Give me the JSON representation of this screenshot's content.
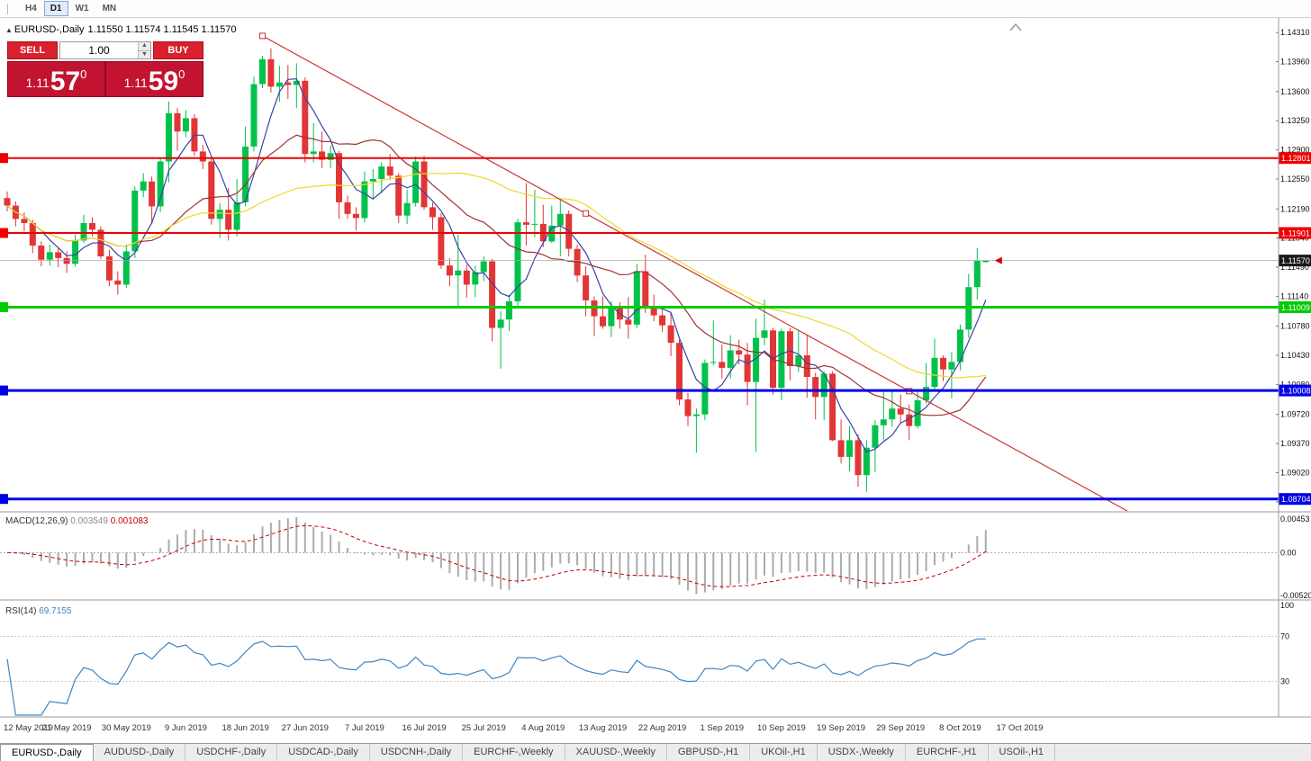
{
  "toolbar": {
    "timeframes": [
      {
        "label": "H4",
        "active": false
      },
      {
        "label": "D1",
        "active": true
      },
      {
        "label": "W1",
        "active": false
      },
      {
        "label": "MN",
        "active": false
      }
    ]
  },
  "chart_header": {
    "collapse_icon": "▲",
    "title": "EURUSD-,Daily",
    "ohlc": "1.11550 1.11574 1.11545 1.11570"
  },
  "trade_panel": {
    "sell_label": "SELL",
    "buy_label": "BUY",
    "volume": "1.00",
    "volume_up_icon": "▲",
    "volume_down_icon": "▼",
    "sell_price_main": "1.11",
    "sell_price_pips": "57",
    "sell_price_point": "0",
    "buy_price_main": "1.11",
    "buy_price_pips": "59",
    "buy_price_point": "0"
  },
  "chart_data": {
    "type": "candlestick",
    "symbol": "EURUSD-,Daily",
    "price_axis": {
      "max": 1.1442,
      "min": 1.0856,
      "ticks": [
        "1.14310",
        "1.13960",
        "1.13600",
        "1.13250",
        "1.12900",
        "1.12550",
        "1.12190",
        "1.11840",
        "1.11490",
        "1.11140",
        "1.10780",
        "1.10430",
        "1.10080",
        "1.09720",
        "1.09370",
        "1.09020",
        "1.08670"
      ]
    },
    "x_axis": {
      "labels": [
        "12 May 2019",
        "21 May 2019",
        "30 May 2019",
        "9 Jun 2019",
        "18 Jun 2019",
        "27 Jun 2019",
        "7 Jul 2019",
        "16 Jul 2019",
        "25 Jul 2019",
        "4 Aug 2019",
        "13 Aug 2019",
        "22 Aug 2019",
        "1 Sep 2019",
        "10 Sep 2019",
        "19 Sep 2019",
        "29 Sep 2019",
        "8 Oct 2019",
        "17 Oct 2019"
      ],
      "bars_per_label": 7
    },
    "colors": {
      "bull": "#00C24B",
      "bear": "#E23535",
      "ma_fast": "#3642A8",
      "ma_mid": "#9E3330",
      "ma_slow": "#EDD92B",
      "trend": "#CC3333",
      "macd_hist": "#ABABAB",
      "macd_signal": "#C40000",
      "rsi": "#3E86C4"
    },
    "overlays": [
      {
        "name": "ma-fast",
        "period": 5,
        "color": "#3642A8"
      },
      {
        "name": "ma-mid",
        "period": 16,
        "color": "#9E3330"
      },
      {
        "name": "ma-slow",
        "period": 40,
        "color": "#EDD92B"
      }
    ],
    "candles": [
      [
        1.1232,
        1.124,
        1.1216,
        1.1223
      ],
      [
        1.1223,
        1.1228,
        1.1198,
        1.1207
      ],
      [
        1.1207,
        1.1215,
        1.1192,
        1.1202
      ],
      [
        1.1202,
        1.1206,
        1.1166,
        1.1175
      ],
      [
        1.1175,
        1.118,
        1.115,
        1.1158
      ],
      [
        1.1158,
        1.1176,
        1.1151,
        1.1167
      ],
      [
        1.1167,
        1.1173,
        1.1149,
        1.116
      ],
      [
        1.116,
        1.1168,
        1.1142,
        1.1153
      ],
      [
        1.1153,
        1.1188,
        1.115,
        1.1181
      ],
      [
        1.1181,
        1.1212,
        1.1178,
        1.1202
      ],
      [
        1.1202,
        1.1209,
        1.1186,
        1.1194
      ],
      [
        1.1194,
        1.1198,
        1.1159,
        1.1162
      ],
      [
        1.1162,
        1.117,
        1.1126,
        1.1133
      ],
      [
        1.1133,
        1.1144,
        1.1116,
        1.1128
      ],
      [
        1.1128,
        1.1176,
        1.1124,
        1.1168
      ],
      [
        1.1168,
        1.1246,
        1.116,
        1.1241
      ],
      [
        1.1241,
        1.1262,
        1.1233,
        1.1252
      ],
      [
        1.1252,
        1.1258,
        1.1201,
        1.1222
      ],
      [
        1.1222,
        1.128,
        1.1215,
        1.1276
      ],
      [
        1.1276,
        1.1348,
        1.1251,
        1.1334
      ],
      [
        1.1334,
        1.134,
        1.1289,
        1.1312
      ],
      [
        1.1312,
        1.1338,
        1.1305,
        1.1328
      ],
      [
        1.1328,
        1.1333,
        1.1283,
        1.1288
      ],
      [
        1.1288,
        1.1296,
        1.1267,
        1.1276
      ],
      [
        1.1276,
        1.128,
        1.12,
        1.1207
      ],
      [
        1.1207,
        1.1226,
        1.1184,
        1.1218
      ],
      [
        1.1218,
        1.1244,
        1.1181,
        1.1194
      ],
      [
        1.1194,
        1.1255,
        1.1186,
        1.1227
      ],
      [
        1.1227,
        1.1318,
        1.1222,
        1.1294
      ],
      [
        1.1294,
        1.1378,
        1.1288,
        1.1369
      ],
      [
        1.1369,
        1.1403,
        1.1364,
        1.1399
      ],
      [
        1.1399,
        1.1412,
        1.1359,
        1.1366
      ],
      [
        1.1366,
        1.1391,
        1.1348,
        1.1371
      ],
      [
        1.1371,
        1.1392,
        1.1351,
        1.1368
      ],
      [
        1.1368,
        1.1394,
        1.134,
        1.1373
      ],
      [
        1.1373,
        1.1377,
        1.1275,
        1.1285
      ],
      [
        1.1285,
        1.1322,
        1.1275,
        1.1288
      ],
      [
        1.1288,
        1.1312,
        1.1268,
        1.1278
      ],
      [
        1.1278,
        1.1295,
        1.1268,
        1.1286
      ],
      [
        1.1286,
        1.1289,
        1.1207,
        1.1227
      ],
      [
        1.1227,
        1.1235,
        1.1207,
        1.1213
      ],
      [
        1.1213,
        1.1221,
        1.1193,
        1.1208
      ],
      [
        1.1208,
        1.1264,
        1.1203,
        1.1252
      ],
      [
        1.1252,
        1.1267,
        1.1232,
        1.1255
      ],
      [
        1.1255,
        1.1275,
        1.1238,
        1.127
      ],
      [
        1.127,
        1.1285,
        1.1254,
        1.1259
      ],
      [
        1.1259,
        1.1262,
        1.1202,
        1.1211
      ],
      [
        1.1211,
        1.1242,
        1.1201,
        1.1226
      ],
      [
        1.1226,
        1.1282,
        1.1222,
        1.1276
      ],
      [
        1.1276,
        1.1283,
        1.1218,
        1.1221
      ],
      [
        1.1221,
        1.1227,
        1.1194,
        1.1209
      ],
      [
        1.1209,
        1.1214,
        1.1147,
        1.1151
      ],
      [
        1.1151,
        1.116,
        1.1126,
        1.1139
      ],
      [
        1.1139,
        1.1188,
        1.1101,
        1.1145
      ],
      [
        1.1145,
        1.1152,
        1.1112,
        1.1128
      ],
      [
        1.1128,
        1.1151,
        1.1113,
        1.1143
      ],
      [
        1.1143,
        1.1162,
        1.1132,
        1.1156
      ],
      [
        1.1156,
        1.1159,
        1.106,
        1.1076
      ],
      [
        1.1076,
        1.1096,
        1.1027,
        1.1086
      ],
      [
        1.1086,
        1.1116,
        1.1072,
        1.1108
      ],
      [
        1.1108,
        1.1207,
        1.1101,
        1.1203
      ],
      [
        1.1203,
        1.125,
        1.1175,
        1.12
      ],
      [
        1.12,
        1.1242,
        1.1185,
        1.1201
      ],
      [
        1.1201,
        1.1224,
        1.1173,
        1.118
      ],
      [
        1.118,
        1.1223,
        1.1178,
        1.1199
      ],
      [
        1.1199,
        1.123,
        1.1162,
        1.1213
      ],
      [
        1.1213,
        1.1217,
        1.1162,
        1.1171
      ],
      [
        1.1171,
        1.1176,
        1.1131,
        1.1139
      ],
      [
        1.1139,
        1.115,
        1.109,
        1.1109
      ],
      [
        1.1109,
        1.1114,
        1.1066,
        1.109
      ],
      [
        1.109,
        1.1114,
        1.1075,
        1.1078
      ],
      [
        1.1078,
        1.1108,
        1.1065,
        1.11
      ],
      [
        1.11,
        1.1107,
        1.1075,
        1.1086
      ],
      [
        1.1086,
        1.1113,
        1.1063,
        1.108
      ],
      [
        1.108,
        1.1153,
        1.1076,
        1.1144
      ],
      [
        1.1144,
        1.1164,
        1.1094,
        1.1101
      ],
      [
        1.1101,
        1.1116,
        1.1084,
        1.1091
      ],
      [
        1.1091,
        1.1098,
        1.1071,
        1.1079
      ],
      [
        1.1079,
        1.1094,
        1.1042,
        1.1058
      ],
      [
        1.1058,
        1.1062,
        1.0983,
        1.099
      ],
      [
        1.099,
        1.0998,
        1.0958,
        1.097
      ],
      [
        1.097,
        1.0979,
        1.0926,
        1.0972
      ],
      [
        1.0972,
        1.1038,
        1.0965,
        1.1034
      ],
      [
        1.1034,
        1.1085,
        1.1031,
        1.1035
      ],
      [
        1.1035,
        1.1056,
        1.1015,
        1.1028
      ],
      [
        1.1028,
        1.1067,
        1.1015,
        1.1049
      ],
      [
        1.1049,
        1.1062,
        1.1032,
        1.1044
      ],
      [
        1.1044,
        1.1058,
        1.0983,
        1.1011
      ],
      [
        1.1011,
        1.1087,
        1.0927,
        1.1064
      ],
      [
        1.1064,
        1.111,
        1.1055,
        1.1073
      ],
      [
        1.1073,
        1.1076,
        1.0996,
        1.1004
      ],
      [
        1.1004,
        1.1075,
        1.0989,
        1.1072
      ],
      [
        1.1072,
        1.1076,
        1.1013,
        1.103
      ],
      [
        1.103,
        1.1074,
        1.1023,
        1.1043
      ],
      [
        1.1043,
        1.1068,
        1.0992,
        1.1017
      ],
      [
        1.1017,
        1.1022,
        1.0966,
        1.0993
      ],
      [
        1.0993,
        1.1024,
        1.0965,
        1.1021
      ],
      [
        1.1021,
        1.1024,
        1.094,
        1.0941
      ],
      [
        1.0941,
        1.0966,
        1.0913,
        1.0921
      ],
      [
        1.0921,
        1.0958,
        1.0904,
        1.0941
      ],
      [
        1.0941,
        1.0948,
        1.0885,
        1.0899
      ],
      [
        1.0899,
        1.0941,
        1.0879,
        1.0932
      ],
      [
        1.0932,
        1.0965,
        1.0903,
        1.0959
      ],
      [
        1.0959,
        1.0999,
        1.0941,
        1.0966
      ],
      [
        1.0966,
        1.1,
        1.0957,
        1.0979
      ],
      [
        1.0979,
        1.0996,
        1.0962,
        1.0972
      ],
      [
        1.0972,
        1.0984,
        1.0941,
        1.0958
      ],
      [
        1.0958,
        1.0999,
        1.0955,
        1.0989
      ],
      [
        1.0989,
        1.1034,
        1.0985,
        1.1005
      ],
      [
        1.1005,
        1.1063,
        1.1002,
        1.104
      ],
      [
        1.104,
        1.1043,
        1.1012,
        1.1026
      ],
      [
        1.1026,
        1.1047,
        1.0991,
        1.1035
      ],
      [
        1.1035,
        1.108,
        1.1025,
        1.1074
      ],
      [
        1.1074,
        1.1141,
        1.1064,
        1.1125
      ],
      [
        1.1125,
        1.1172,
        1.111,
        1.1157
      ],
      [
        1.1155,
        1.11574,
        1.11545,
        1.1157
      ]
    ],
    "hlines": [
      {
        "price": 1.12801,
        "label": "1.12801",
        "color": "#EE0000",
        "width": 2
      },
      {
        "price": 1.11901,
        "label": "1.11901",
        "color": "#EE0000",
        "width": 2
      },
      {
        "price": 1.11009,
        "label": "1.11009",
        "color": "#00CC00",
        "width": 3
      },
      {
        "price": 1.10008,
        "label": "1.10008",
        "color": "#0000E6",
        "width": 3
      },
      {
        "price": 1.08704,
        "label": "1.08704",
        "color": "#0000E6",
        "width": 3
      }
    ],
    "current_price": {
      "value": 1.1157,
      "label": "1.11570"
    },
    "trendline": {
      "from_bar": 30,
      "from_price": 1.1427,
      "to_bar": 106,
      "to_price": 1.1,
      "ray": true
    },
    "macd": {
      "label": "MACD(12,26,9)",
      "value_main": "0.003549",
      "value_signal": "0.001083",
      "fast": 12,
      "slow": 26,
      "signal": 9,
      "axis_top": "0.00453",
      "axis_zero": "0.00",
      "axis_bottom": "-0.00520"
    },
    "rsi": {
      "label": "RSI(14)",
      "value": "69.7155",
      "period": 14,
      "levels": [
        70,
        30
      ],
      "axis_labels": {
        "top": "100",
        "upper": "70",
        "lower": "30"
      }
    }
  },
  "tabs": {
    "items": [
      {
        "label": "EURUSD-,Daily",
        "active": true
      },
      {
        "label": "AUDUSD-,Daily",
        "active": false
      },
      {
        "label": "USDCHF-,Daily",
        "active": false
      },
      {
        "label": "USDCAD-,Daily",
        "active": false
      },
      {
        "label": "USDCNH-,Daily",
        "active": false
      },
      {
        "label": "EURCHF-,Weekly",
        "active": false
      },
      {
        "label": "XAUUSD-,Weekly",
        "active": false
      },
      {
        "label": "GBPUSD-,H1",
        "active": false
      },
      {
        "label": "UKOil-,H1",
        "active": false
      },
      {
        "label": "USDX-,Weekly",
        "active": false
      },
      {
        "label": "EURCHF-,H1",
        "active": false
      },
      {
        "label": "USOil-,H1",
        "active": false
      }
    ]
  }
}
